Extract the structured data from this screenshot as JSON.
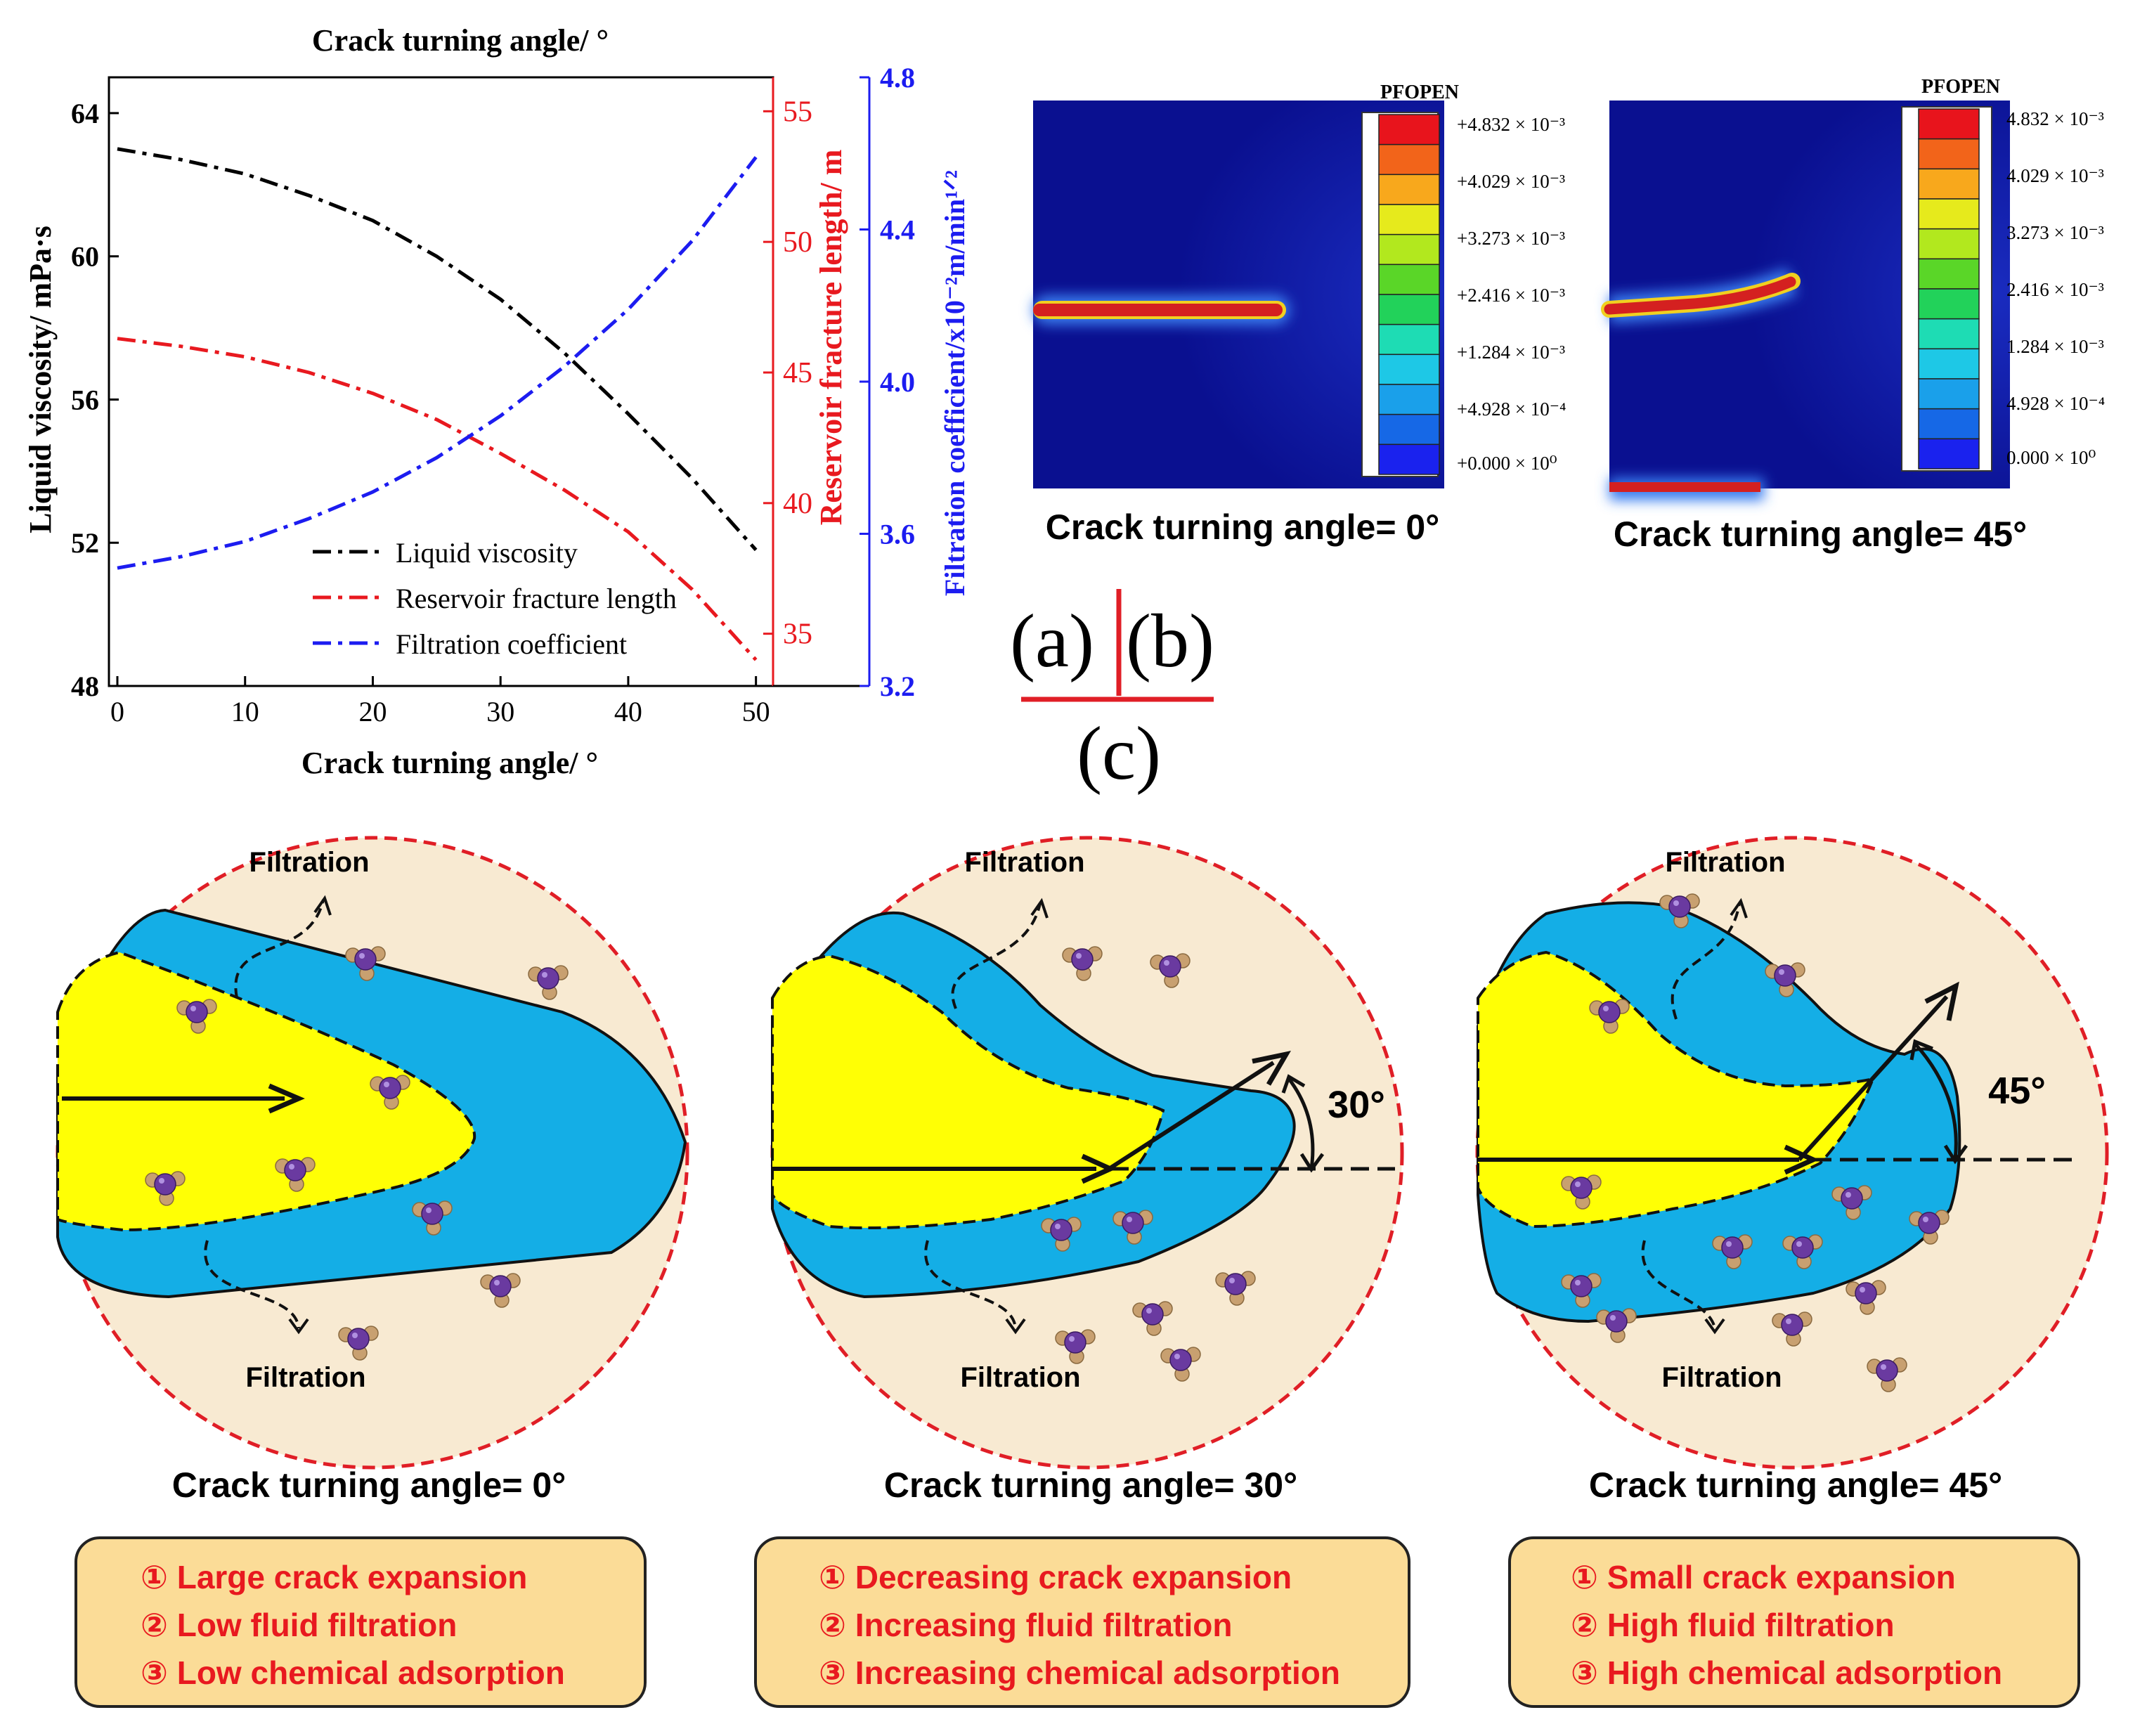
{
  "chart_data": {
    "type": "line",
    "title": "Crack turning angle/ °",
    "xlabel": "Crack turning angle/ °",
    "xlim": [
      0,
      52
    ],
    "xticks": [
      0,
      10,
      20,
      30,
      40,
      50
    ],
    "x": [
      0,
      5,
      10,
      15,
      20,
      25,
      30,
      35,
      40,
      45,
      50
    ],
    "axes": {
      "left": {
        "label": "Liquid viscosity/ mPa·s",
        "ylim": [
          48,
          65
        ],
        "ticks": [
          48,
          52,
          56,
          60,
          64
        ],
        "color": "#000000"
      },
      "right1": {
        "label": "Reservoir fracture length/ m",
        "ylim": [
          33,
          56.3
        ],
        "ticks": [
          35,
          40,
          45,
          50,
          55
        ],
        "color": "#e8191f"
      },
      "right2": {
        "label": "Filtration coefficient/x10⁻²m/min¹ᐟ²",
        "ylim": [
          3.2,
          4.8
        ],
        "ticks": [
          3.2,
          3.6,
          4.0,
          4.4,
          4.8
        ],
        "color": "#1c1cf0"
      }
    },
    "series": [
      {
        "name": "Liquid viscosity",
        "axis": "left",
        "color": "#000000",
        "values": [
          63.0,
          62.7,
          62.3,
          61.7,
          61.0,
          60.0,
          58.8,
          57.3,
          55.6,
          53.8,
          51.8
        ]
      },
      {
        "name": "Reservoir fracture length",
        "axis": "right1",
        "color": "#e8191f",
        "values": [
          46.3,
          46.0,
          45.6,
          45.0,
          44.2,
          43.2,
          41.9,
          40.5,
          38.9,
          36.7,
          34.0
        ]
      },
      {
        "name": "Filtration coefficient",
        "axis": "right2",
        "color": "#1c1cf0",
        "values": [
          3.51,
          3.54,
          3.58,
          3.64,
          3.71,
          3.8,
          3.91,
          4.04,
          4.19,
          4.37,
          4.59
        ]
      }
    ],
    "legend_position": "bottom-center",
    "grid": false
  },
  "panel_labels": {
    "a": "(a)",
    "b": "(b)",
    "c": "(c)"
  },
  "contours": {
    "header": "PFOPEN",
    "values": [
      "+4.832 × 10⁻³",
      "+4.029 × 10⁻³",
      "+3.273 × 10⁻³",
      "+2.416 × 10⁻³",
      "+1.284 × 10⁻³",
      "+4.928 × 10⁻⁴",
      "+0.000 × 10⁰"
    ],
    "values_cropped": [
      "4.832 × 10⁻³",
      "4.029 × 10⁻³",
      "3.273 × 10⁻³",
      "2.416 × 10⁻³",
      "1.284 × 10⁻³",
      "4.928 × 10⁻⁴",
      "0.000 × 10⁰"
    ],
    "colors": [
      "#e8141c",
      "#f2641a",
      "#f8a81c",
      "#e6ea1c",
      "#b2e81e",
      "#5ad628",
      "#22d25a",
      "#1edcb4",
      "#1ec8e6",
      "#1aa0ea",
      "#1668e6",
      "#1a22ee"
    ],
    "captions": [
      "Crack turning angle= 0°",
      "Crack turning angle= 45°"
    ]
  },
  "schematics": [
    {
      "caption": "Crack turning angle= 0°",
      "filtration_top": "Filtration",
      "filtration_bottom": "Filtration",
      "angle": "",
      "points": [
        "① Large crack expansion",
        "② Low fluid filtration",
        "③ Low chemical adsorption"
      ]
    },
    {
      "caption": "Crack turning angle= 30°",
      "filtration_top": "Filtration",
      "filtration_bottom": "Filtration",
      "angle": "30°",
      "points": [
        "① Decreasing crack expansion",
        "② Increasing fluid filtration",
        "③ Increasing chemical adsorption"
      ]
    },
    {
      "caption": "Crack turning angle= 45°",
      "filtration_top": "Filtration",
      "filtration_bottom": "Filtration",
      "angle": "45°",
      "points": [
        "① Small crack expansion",
        "② High fluid filtration",
        "③ High chemical adsorption"
      ]
    }
  ],
  "colors": {
    "fracture_blue": "#14aee6",
    "fluid_yellow": "#ffff05",
    "circle_fill": "#f8ead2",
    "circle_border": "#e01e26",
    "box_fill": "#fbdc97",
    "point_text": "#e8191f",
    "molecule_purple": "#6a3aa0",
    "molecule_tan": "#c8a070",
    "field_navy": "#0c1496"
  }
}
